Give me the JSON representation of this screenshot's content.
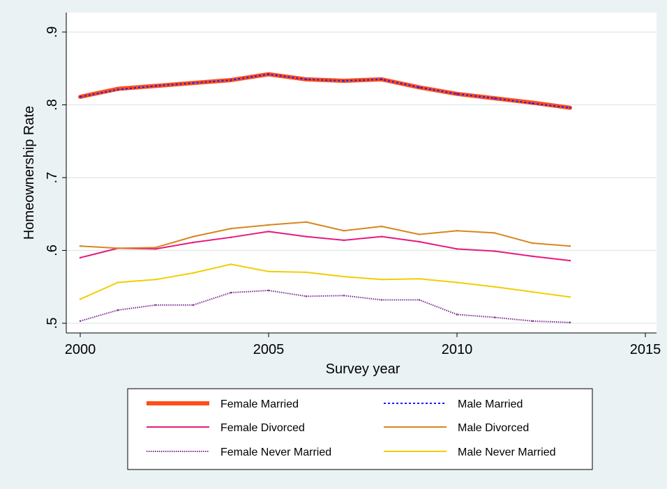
{
  "chart_data": {
    "type": "line",
    "xlabel": "Survey year",
    "ylabel": "Homeownership Rate",
    "xlim": [
      2000,
      2015
    ],
    "ylim": [
      0.5,
      0.9
    ],
    "x_ticks": [
      {
        "value": 2000,
        "label": "2000"
      },
      {
        "value": 2005,
        "label": "2005"
      },
      {
        "value": 2010,
        "label": "2010"
      },
      {
        "value": 2015,
        "label": "2015"
      }
    ],
    "y_ticks": [
      {
        "value": 0.5,
        "label": ".5"
      },
      {
        "value": 0.6,
        "label": ".6"
      },
      {
        "value": 0.7,
        "label": ".7"
      },
      {
        "value": 0.8,
        "label": ".8"
      },
      {
        "value": 0.9,
        "label": ".9"
      }
    ],
    "grid": true,
    "legend_position": "bottom",
    "x": [
      2000,
      2001,
      2002,
      2003,
      2004,
      2005,
      2006,
      2007,
      2008,
      2009,
      2010,
      2011,
      2012,
      2013
    ],
    "series": [
      {
        "name": "Female Married",
        "color": "#ff4e1a",
        "style": "thick-solid",
        "values": [
          0.811,
          0.822,
          0.826,
          0.83,
          0.834,
          0.842,
          0.835,
          0.833,
          0.835,
          0.824,
          0.815,
          0.809,
          0.803,
          0.796
        ]
      },
      {
        "name": "Male Married",
        "color": "#1a1aff",
        "style": "dotted",
        "values": [
          0.811,
          0.821,
          0.826,
          0.83,
          0.834,
          0.842,
          0.835,
          0.833,
          0.835,
          0.824,
          0.815,
          0.809,
          0.802,
          0.796
        ]
      },
      {
        "name": "Female Divorced",
        "color": "#e8197d",
        "style": "solid",
        "values": [
          0.59,
          0.603,
          0.602,
          0.611,
          0.618,
          0.626,
          0.619,
          0.614,
          0.619,
          0.612,
          0.602,
          0.599,
          0.592,
          0.586
        ]
      },
      {
        "name": "Male Divorced",
        "color": "#d9851f",
        "style": "solid",
        "values": [
          0.606,
          0.603,
          0.604,
          0.619,
          0.63,
          0.635,
          0.639,
          0.627,
          0.633,
          0.622,
          0.627,
          0.624,
          0.61,
          0.606
        ]
      },
      {
        "name": "Female Never Married",
        "color": "#7a2a8c",
        "style": "dense-dotted",
        "values": [
          0.503,
          0.518,
          0.525,
          0.525,
          0.542,
          0.545,
          0.537,
          0.538,
          0.532,
          0.532,
          0.512,
          0.508,
          0.503,
          0.501
        ]
      },
      {
        "name": "Male Never Married",
        "color": "#f5cc00",
        "style": "solid",
        "values": [
          0.533,
          0.556,
          0.56,
          0.569,
          0.581,
          0.571,
          0.57,
          0.564,
          0.56,
          0.561,
          0.556,
          0.55,
          0.543,
          0.536
        ]
      }
    ]
  }
}
